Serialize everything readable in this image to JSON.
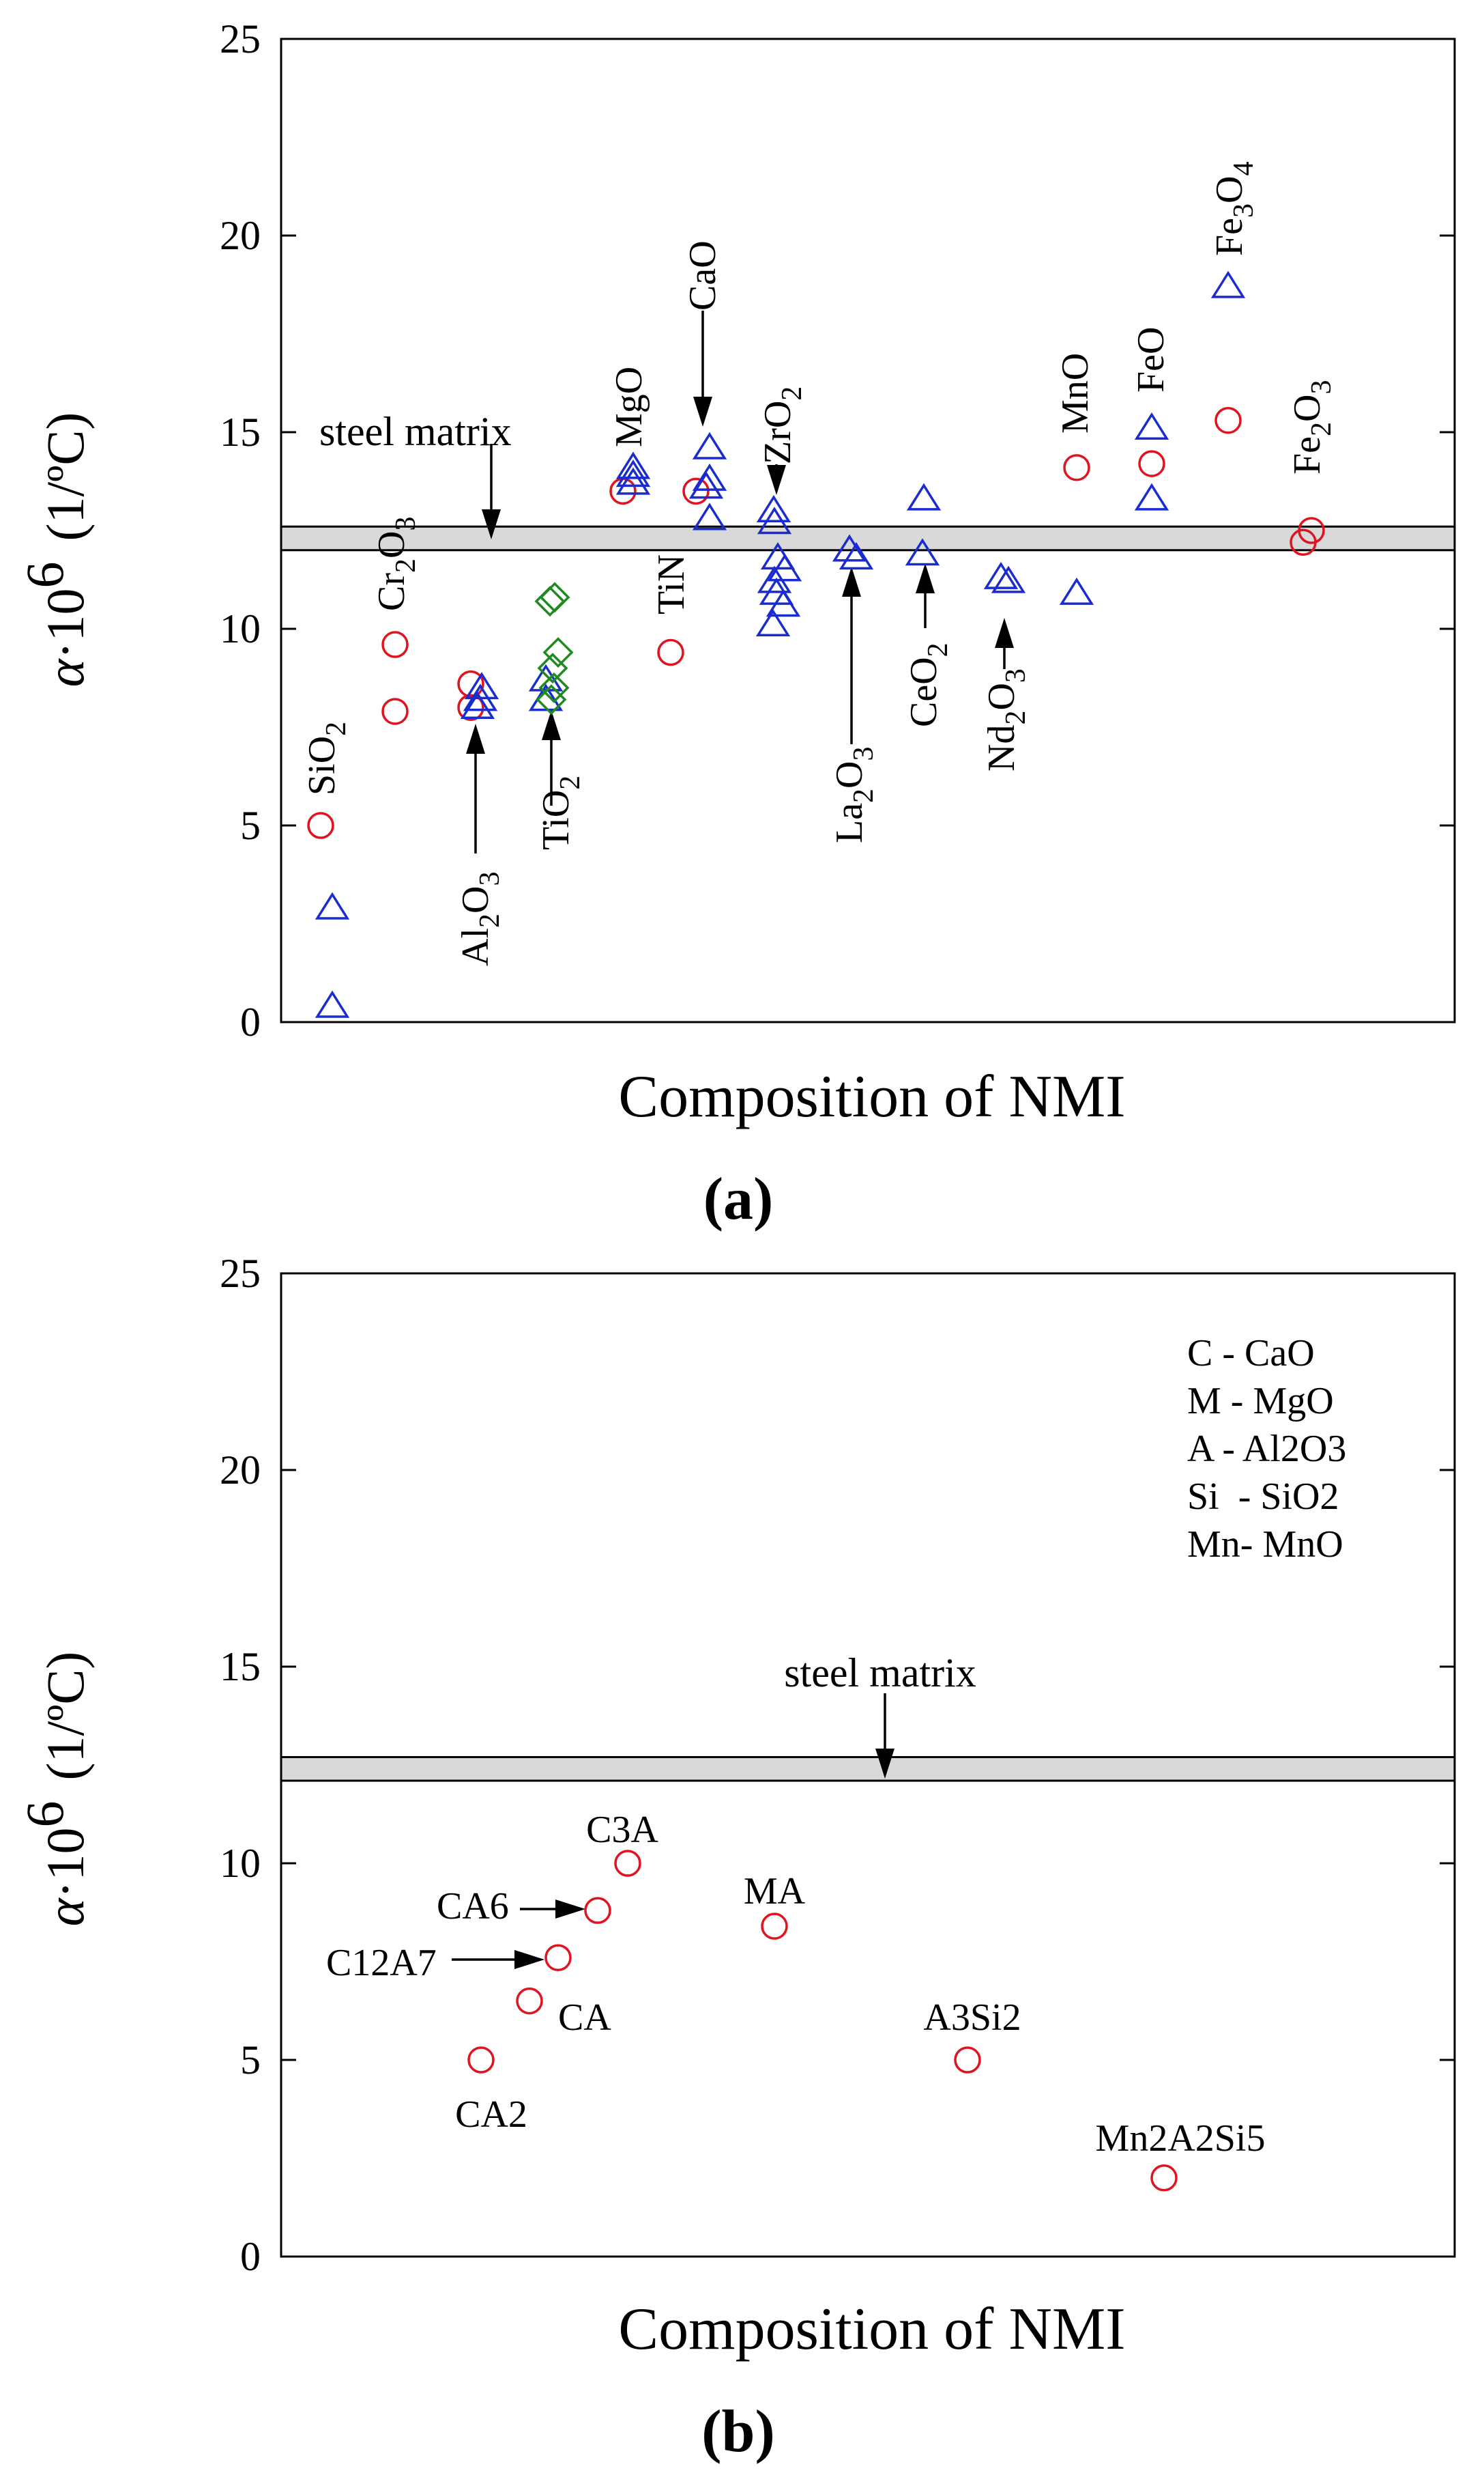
{
  "colors": {
    "red_circle": "#e0141e",
    "blue_triangle": "#1a2bd0",
    "green_diamond": "#1f8a1f",
    "band_fill": "#d9d9d9"
  },
  "chart_data": [
    {
      "panel": "a",
      "type": "scatter",
      "caption": "(a)",
      "xlabel": "Composition of NMI",
      "ylabel": "α·10⁶ (1/ºC)",
      "ylabel_parts": {
        "alpha": "α",
        "dot": "·",
        "base": "10",
        "exp": "6",
        "unit": "(1/ºC)"
      },
      "ylim": [
        0,
        25
      ],
      "yticks": [
        0,
        5,
        10,
        15,
        20,
        25
      ],
      "xticks_shown": false,
      "band": {
        "label": "steel matrix",
        "y_range": [
          12.0,
          12.6
        ]
      },
      "series": [
        {
          "name": "circle",
          "marker": "circle",
          "color": "#e0141e",
          "points": [
            {
              "group": "SiO2",
              "y": 5.0
            },
            {
              "group": "Cr2O3",
              "y": 9.6
            },
            {
              "group": "Cr2O3",
              "y": 7.9
            },
            {
              "group": "Al2O3",
              "y": 8.6
            },
            {
              "group": "Al2O3",
              "y": 8.0
            },
            {
              "group": "TiN",
              "y": 9.4
            },
            {
              "group": "MgO",
              "y": 13.5
            },
            {
              "group": "CaO",
              "y": 13.5
            },
            {
              "group": "MnO",
              "y": 14.1
            },
            {
              "group": "FeO",
              "y": 14.2
            },
            {
              "group": "Fe3O4",
              "y": 15.3
            },
            {
              "group": "Fe2O3",
              "y": 12.2
            },
            {
              "group": "Fe2O3",
              "y": 12.5
            }
          ]
        },
        {
          "name": "triangle",
          "marker": "triangle",
          "color": "#1a2bd0",
          "points": [
            {
              "group": "SiO2",
              "y": 2.9
            },
            {
              "group": "SiO2",
              "y": 0.4
            },
            {
              "group": "Al2O3",
              "y": 8.5
            },
            {
              "group": "Al2O3",
              "y": 8.2
            },
            {
              "group": "Al2O3",
              "y": 8.0
            },
            {
              "group": "TiO2",
              "y": 8.7
            },
            {
              "group": "TiO2",
              "y": 8.2
            },
            {
              "group": "MgO",
              "y": 14.1
            },
            {
              "group": "MgO",
              "y": 13.9
            },
            {
              "group": "MgO",
              "y": 13.7
            },
            {
              "group": "CaO",
              "y": 14.6
            },
            {
              "group": "CaO",
              "y": 13.8
            },
            {
              "group": "CaO",
              "y": 13.6
            },
            {
              "group": "CaO",
              "y": 12.8
            },
            {
              "group": "ZrO2",
              "y": 13.0
            },
            {
              "group": "ZrO2",
              "y": 12.7
            },
            {
              "group": "ZrO2",
              "y": 11.8
            },
            {
              "group": "ZrO2",
              "y": 11.5
            },
            {
              "group": "ZrO2",
              "y": 11.2
            },
            {
              "group": "ZrO2",
              "y": 10.9
            },
            {
              "group": "ZrO2",
              "y": 10.6
            },
            {
              "group": "ZrO2",
              "y": 10.1
            },
            {
              "group": "La2O3",
              "y": 12.0
            },
            {
              "group": "La2O3",
              "y": 11.8
            },
            {
              "group": "CeO2",
              "y": 13.3
            },
            {
              "group": "CeO2",
              "y": 11.9
            },
            {
              "group": "Nd2O3",
              "y": 11.3
            },
            {
              "group": "Nd2O3",
              "y": 11.2
            },
            {
              "group": "MnO",
              "y": 10.9
            },
            {
              "group": "FeO",
              "y": 15.1
            },
            {
              "group": "FeO",
              "y": 13.3
            },
            {
              "group": "Fe3O4",
              "y": 18.7
            }
          ]
        },
        {
          "name": "diamond",
          "marker": "diamond",
          "color": "#1f8a1f",
          "points": [
            {
              "group": "TiO2",
              "y": 10.8
            },
            {
              "group": "TiO2",
              "y": 10.7
            },
            {
              "group": "TiO2",
              "y": 9.4
            },
            {
              "group": "TiO2",
              "y": 9.0
            },
            {
              "group": "TiO2",
              "y": 8.5
            },
            {
              "group": "TiO2",
              "y": 8.2
            }
          ]
        }
      ],
      "labels": [
        {
          "base": "SiO",
          "sub": "2"
        },
        {
          "base": "Cr",
          "sub": "2",
          "base2": "O",
          "sub2": "3"
        },
        {
          "base": "Al",
          "sub": "2",
          "base2": "O",
          "sub2": "3"
        },
        {
          "base": "TiO",
          "sub": "2"
        },
        {
          "base": "TiN"
        },
        {
          "base": "MgO"
        },
        {
          "base": "CaO"
        },
        {
          "base": "ZrO",
          "sub": "2"
        },
        {
          "base": "La",
          "sub": "2",
          "base2": "O",
          "sub2": "3"
        },
        {
          "base": "CeO",
          "sub": "2"
        },
        {
          "base": "Nd",
          "sub": "2",
          "base2": "O",
          "sub2": "3"
        },
        {
          "base": "MnO"
        },
        {
          "base": "FeO"
        },
        {
          "base": "Fe",
          "sub": "3",
          "base2": "O",
          "sub2": "4"
        },
        {
          "base": "Fe",
          "sub": "2",
          "base2": "O",
          "sub2": "3"
        }
      ]
    },
    {
      "panel": "b",
      "type": "scatter",
      "caption": "(b)",
      "xlabel": "Composition of NMI",
      "ylabel": "α·10⁶ (1/ºC)",
      "ylabel_parts": {
        "alpha": "α",
        "dot": "·",
        "base": "10",
        "exp": "6",
        "unit": "(1/ºC)"
      },
      "ylim": [
        0,
        25
      ],
      "yticks": [
        0,
        5,
        10,
        15,
        20,
        25
      ],
      "xticks_shown": false,
      "band": {
        "label": "steel matrix",
        "y_range": [
          12.1,
          12.7
        ]
      },
      "legend_note": [
        "C - CaO",
        "M - MgO",
        "A - Al2O3",
        "Si  - SiO2",
        "Mn- MnO"
      ],
      "series": [
        {
          "name": "circle",
          "marker": "circle",
          "color": "#e0141e",
          "points": [
            {
              "label": "CA2",
              "y": 5.0
            },
            {
              "label": "CA",
              "y": 6.5
            },
            {
              "label": "C12A7",
              "y": 7.6
            },
            {
              "label": "CA6",
              "y": 8.8
            },
            {
              "label": "C3A",
              "y": 10.0
            },
            {
              "label": "MA",
              "y": 8.4
            },
            {
              "label": "A3Si2",
              "y": 5.0
            },
            {
              "label": "Mn2A2Si5",
              "y": 2.0
            }
          ]
        }
      ]
    }
  ]
}
